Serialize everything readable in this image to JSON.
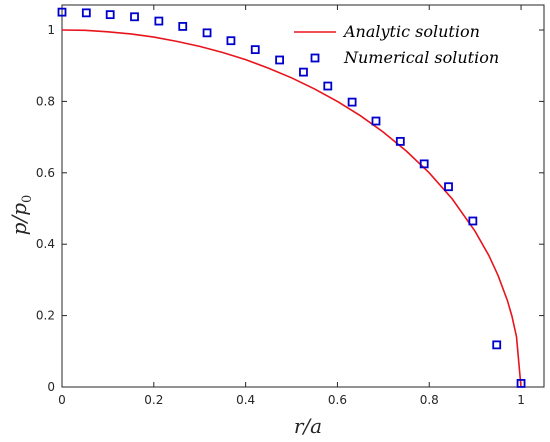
{
  "chart_data": {
    "type": "line",
    "xlabel": "r/a",
    "ylabel": "p/p0",
    "xlim": [
      0,
      1.05
    ],
    "ylim": [
      0,
      1.07
    ],
    "x_ticks": [
      0,
      0.2,
      0.4,
      0.6,
      0.8,
      1
    ],
    "y_ticks": [
      0,
      0.2,
      0.4,
      0.6,
      0.8,
      1
    ],
    "x_tick_labels": [
      "0",
      "0.2",
      "0.4",
      "0.6",
      "0.8",
      "1"
    ],
    "y_tick_labels": [
      "0",
      "0.2",
      "0.4",
      "0.6",
      "0.8",
      "1"
    ],
    "grid": false,
    "legend_position": "top-right",
    "series": [
      {
        "name": "Analytic solution",
        "kind": "line",
        "color": "#e8141c",
        "x": [
          0,
          0.05,
          0.1,
          0.15,
          0.2,
          0.25,
          0.3,
          0.35,
          0.4,
          0.45,
          0.5,
          0.55,
          0.6,
          0.65,
          0.7,
          0.75,
          0.8,
          0.85,
          0.9,
          0.93,
          0.95,
          0.97,
          0.98,
          0.99,
          1.0
        ],
        "y": [
          1.0,
          0.999,
          0.995,
          0.989,
          0.98,
          0.968,
          0.954,
          0.937,
          0.917,
          0.893,
          0.866,
          0.835,
          0.8,
          0.76,
          0.714,
          0.661,
          0.6,
          0.527,
          0.436,
          0.368,
          0.312,
          0.243,
          0.199,
          0.141,
          0.0
        ]
      },
      {
        "name": "Numerical solution",
        "kind": "scatter",
        "marker": "square",
        "color": "#0000cc",
        "x": [
          0,
          0.053,
          0.105,
          0.158,
          0.211,
          0.263,
          0.316,
          0.368,
          0.421,
          0.474,
          0.526,
          0.579,
          0.632,
          0.684,
          0.737,
          0.789,
          0.842,
          0.895,
          0.947,
          1.0
        ],
        "y": [
          1.05,
          1.048,
          1.043,
          1.037,
          1.025,
          1.01,
          0.992,
          0.97,
          0.945,
          0.916,
          0.882,
          0.843,
          0.798,
          0.745,
          0.688,
          0.625,
          0.561,
          0.465,
          0.118,
          0.01
        ]
      }
    ]
  }
}
